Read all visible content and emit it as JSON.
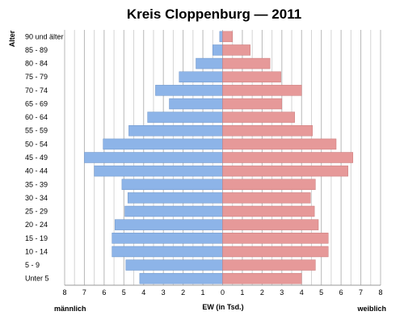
{
  "chart_data": {
    "type": "bar",
    "orientation": "horizontal-population-pyramid",
    "title": "Kreis Cloppenburg — 2011",
    "xlabel": "EW (in Tsd.)",
    "ylabel": "Alter",
    "left_label": "männlich",
    "right_label": "weiblich",
    "xlim": [
      -8,
      8
    ],
    "x_ticks": [
      8,
      7,
      6,
      5,
      4,
      3,
      2,
      1,
      0,
      1,
      2,
      3,
      4,
      5,
      6,
      7,
      8
    ],
    "grid": true,
    "categories": [
      "90 und älter",
      "85 - 89",
      "80 - 84",
      "75 - 79",
      "70 - 74",
      "65 - 69",
      "60 - 64",
      "55 - 59",
      "50 - 54",
      "45 - 49",
      "40 - 44",
      "35 - 39",
      "30 - 34",
      "25 - 29",
      "20 - 24",
      "15 - 19",
      "10 - 14",
      "5 - 9",
      "Unter 5"
    ],
    "series": [
      {
        "name": "männlich",
        "color": "#8db4e8",
        "values": [
          0.15,
          0.5,
          1.35,
          2.2,
          3.4,
          2.7,
          3.8,
          4.75,
          6.05,
          7.0,
          6.5,
          5.1,
          4.8,
          4.95,
          5.45,
          5.6,
          5.6,
          4.9,
          4.2
        ]
      },
      {
        "name": "weiblich",
        "color": "#e69999",
        "values": [
          0.5,
          1.4,
          2.4,
          2.95,
          4.0,
          3.0,
          3.65,
          4.55,
          5.75,
          6.6,
          6.35,
          4.7,
          4.45,
          4.65,
          4.85,
          5.35,
          5.35,
          4.7,
          4.0
        ]
      }
    ]
  }
}
